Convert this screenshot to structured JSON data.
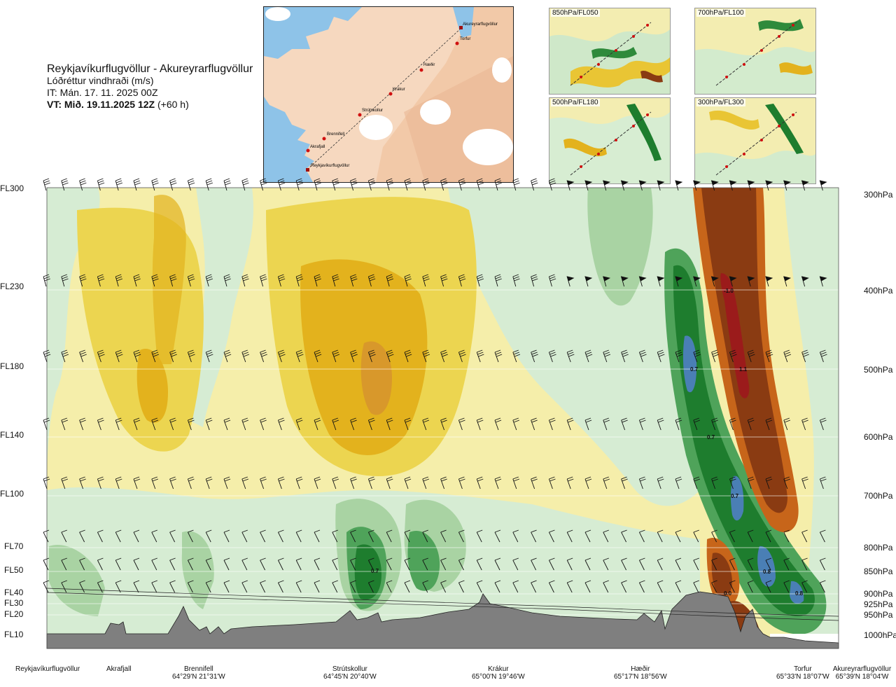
{
  "title": {
    "route": "Reykjavíkurflugvöllur - Akureyrarflugvöllur",
    "variable": "Lóðréttur vindhraði (m/s)",
    "issue_time": "IT: Mán. 17. 11. 2025 00Z",
    "valid_time_bold": "VT: Mið. 19.11.2025 12Z",
    "valid_time_offset": "(+60 h)"
  },
  "flight_levels": [
    {
      "label": "FL300",
      "pressure": "300hPa"
    },
    {
      "label": "FL230",
      "pressure": "400hPa"
    },
    {
      "label": "FL180",
      "pressure": "500hPa"
    },
    {
      "label": "FL140",
      "pressure": "600hPa"
    },
    {
      "label": "FL100",
      "pressure": "700hPa"
    },
    {
      "label": "FL70",
      "pressure": "800hPa"
    },
    {
      "label": "FL50",
      "pressure": "850hPa"
    },
    {
      "label": "FL40",
      "pressure": "900hPa"
    },
    {
      "label": "FL30",
      "pressure": "925hPa"
    },
    {
      "label": "FL20",
      "pressure": "950hPa"
    },
    {
      "label": "FL10",
      "pressure": "1000hPa"
    }
  ],
  "waypoints": [
    {
      "name": "Reykjavíkurflugvöllur",
      "coord": ""
    },
    {
      "name": "Akrafjall",
      "coord": ""
    },
    {
      "name": "Brennifell",
      "coord": "64°29'N 21°31'W"
    },
    {
      "name": "Strútskollur",
      "coord": "64°45'N 20°40'W"
    },
    {
      "name": "Krákur",
      "coord": "65°00'N 19°46'W"
    },
    {
      "name": "Hæðir",
      "coord": "65°17'N 18°56'W"
    },
    {
      "name": "Torfur",
      "coord": "65°33'N 18°07'W"
    },
    {
      "name": "Akureyrarflugvöllur",
      "coord": "65°39'N 18°04'W"
    }
  ],
  "map_labels": {
    "akureyri": "Akureyrarflugvöllur",
    "torfur": "Torfur",
    "haedir": "Hæðir",
    "krakur": "Krákur",
    "strutskollur": "Strútskollur",
    "brennifell": "Brennifell",
    "akrafjall": "Akrafjall",
    "reykjavik": "Reykjavíkurflugvöllur"
  },
  "insets": [
    {
      "label": "850hPa/FL050"
    },
    {
      "label": "700hPa/FL100"
    },
    {
      "label": "500hPa/FL180"
    },
    {
      "label": "300hPa/FL300"
    }
  ],
  "contour_values": {
    "v1": "-1.0",
    "v2": "0.7",
    "v3": "1.1",
    "v4": "0.7",
    "v5": "0.7",
    "v6": "0.7",
    "v7": "0.8",
    "v8": "0.0",
    "v9": "0.8"
  },
  "colors": {
    "strong_up": "#4a7fb5",
    "up_dark": "#1e7d2e",
    "up_mid": "#4fa35a",
    "up_light": "#a9d3a3",
    "up_pale": "#d6ecd3",
    "neutral": "#f5eeaa",
    "down_light": "#ecd550",
    "down_mid": "#e3b21d",
    "down_strong": "#c7651a",
    "down_brown": "#8a3b12",
    "down_red": "#9b1b1b",
    "terrain": "#7f7f7f"
  }
}
